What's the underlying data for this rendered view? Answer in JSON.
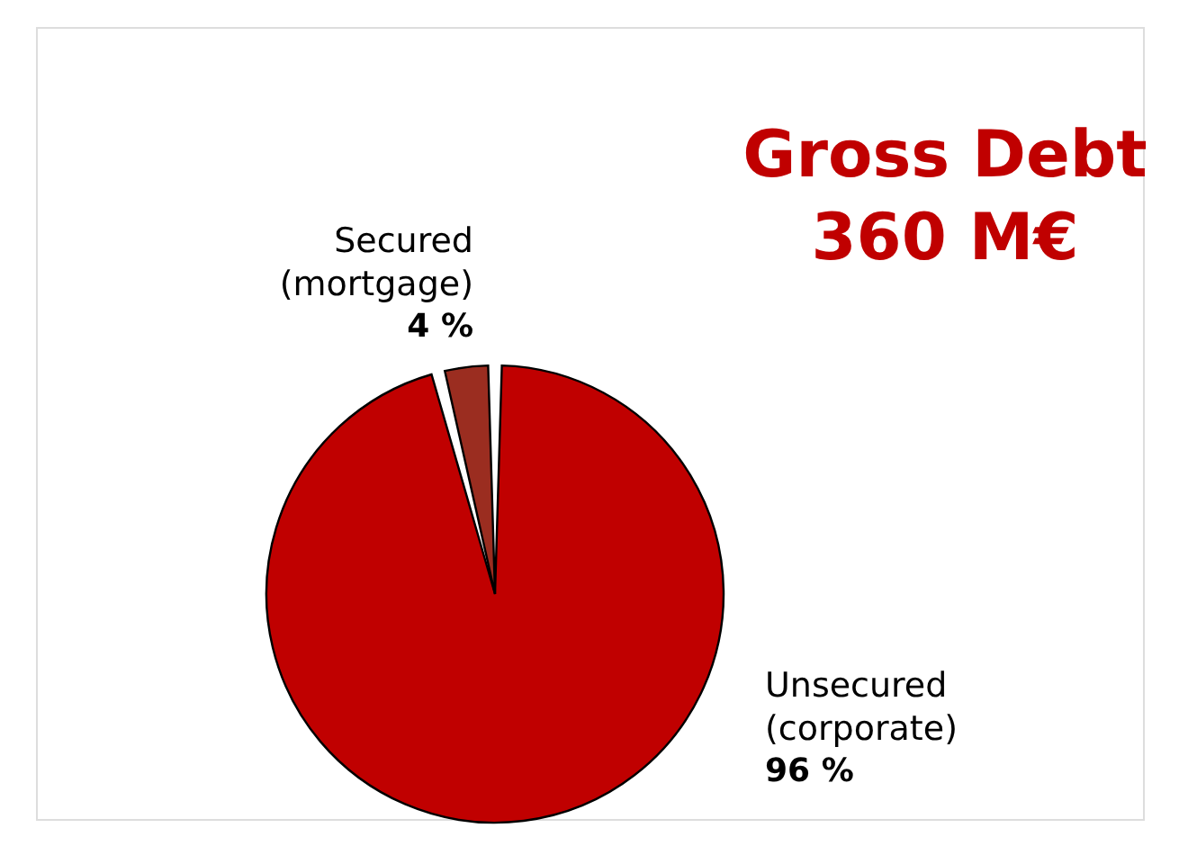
{
  "chart_data": {
    "type": "pie",
    "title": "Gross Debt\n360 M€",
    "categories": [
      "Unsecured (corporate)",
      "Secured (mortgage)"
    ],
    "values": [
      96,
      4
    ],
    "colors": [
      "#c00000",
      "#9b2d20"
    ],
    "value_labels": [
      "96 %",
      "4 %"
    ]
  }
}
